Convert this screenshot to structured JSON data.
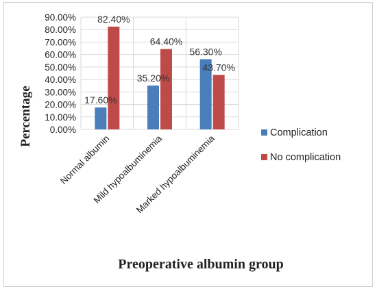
{
  "chart_data": {
    "type": "bar",
    "categories": [
      "Normal albumin",
      "Mild hypoalbuminemia",
      "Marked hypoalbuminemia"
    ],
    "series": [
      {
        "name": "Complication",
        "values": [
          17.6,
          35.2,
          56.3
        ],
        "color": "#4a7ebb",
        "labels": [
          "17.60%",
          "35.20%",
          "56.30%"
        ]
      },
      {
        "name": "No complication",
        "values": [
          82.4,
          64.4,
          43.7
        ],
        "color": "#be4b48",
        "labels": [
          "82.40%",
          "64.40%",
          "43.70%"
        ]
      }
    ],
    "yticks": [
      "0.00%",
      "10.00%",
      "20.00%",
      "30.00%",
      "40.00%",
      "50.00%",
      "60.00%",
      "70.00%",
      "80.00%",
      "90.00%"
    ],
    "ylim": [
      0,
      90
    ],
    "xlabel": "Preoperative albumin group",
    "ylabel": "Percentage",
    "grid": true,
    "legend_position": "right"
  }
}
